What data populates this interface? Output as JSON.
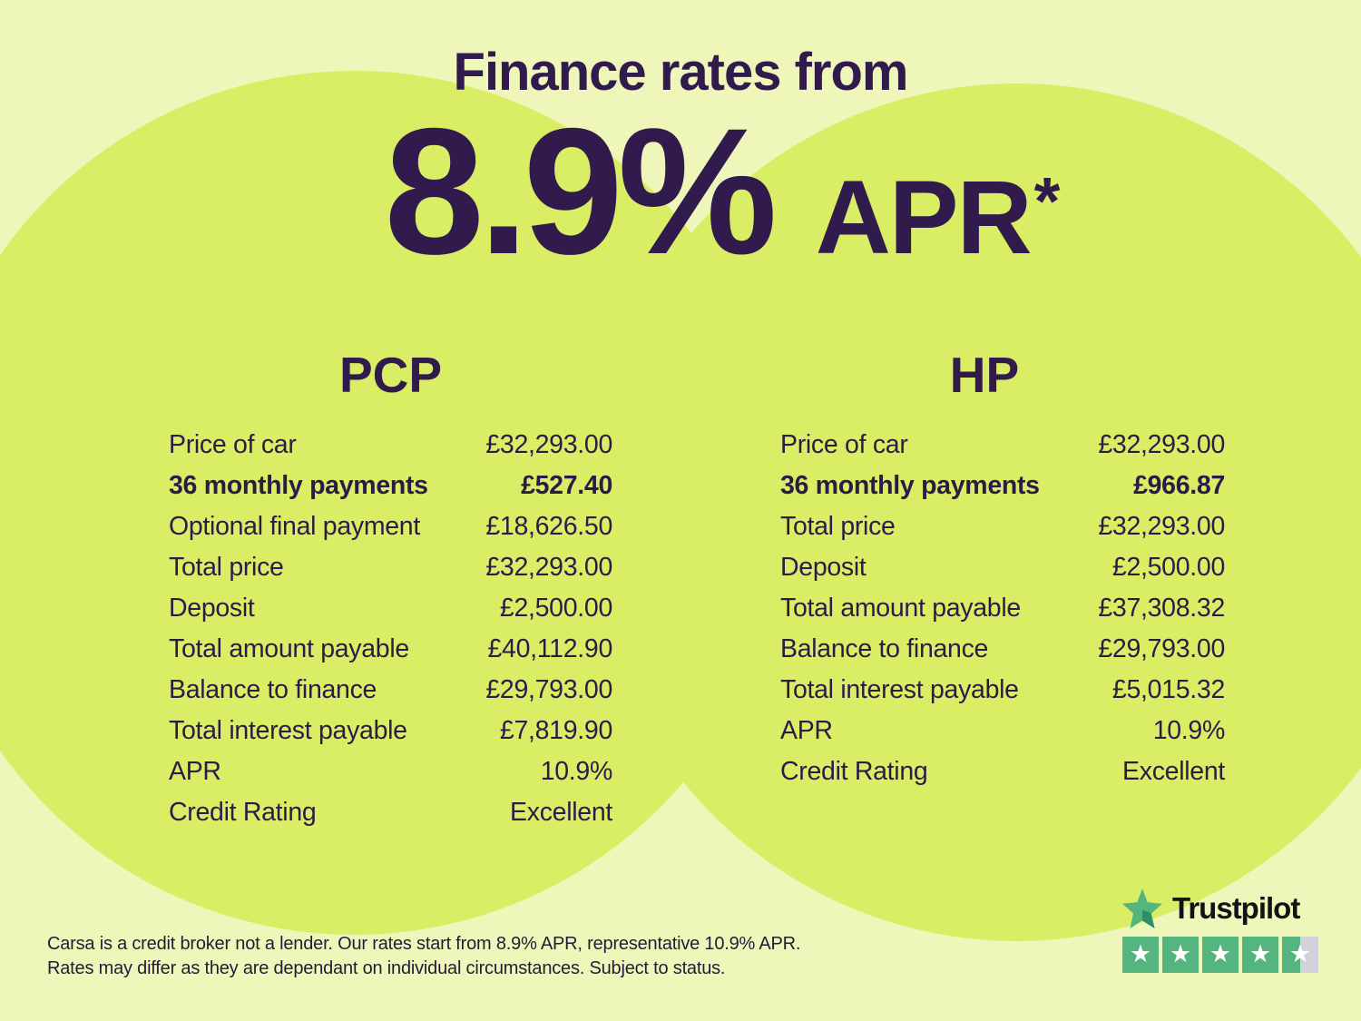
{
  "page": {
    "title": "Finance rates from"
  },
  "rate": {
    "value": "8.9%",
    "suffix": "APR",
    "footnote_marker": "*"
  },
  "tables": {
    "pcp": {
      "title": "PCP",
      "rows": [
        {
          "label": "Price of car",
          "value": "£32,293.00",
          "bold": false
        },
        {
          "label": "36 monthly payments",
          "value": "£527.40",
          "bold": true
        },
        {
          "label": "Optional final payment",
          "value": "£18,626.50",
          "bold": false
        },
        {
          "label": "Total price",
          "value": "£32,293.00",
          "bold": false
        },
        {
          "label": "Deposit",
          "value": "£2,500.00",
          "bold": false
        },
        {
          "label": "Total amount payable",
          "value": "£40,112.90",
          "bold": false
        },
        {
          "label": "Balance to finance",
          "value": "£29,793.00",
          "bold": false
        },
        {
          "label": "Total interest payable",
          "value": "£7,819.90",
          "bold": false
        },
        {
          "label": "APR",
          "value": "10.9%",
          "bold": false
        },
        {
          "label": "Credit Rating",
          "value": "Excellent",
          "bold": false
        }
      ]
    },
    "hp": {
      "title": "HP",
      "rows": [
        {
          "label": "Price of car",
          "value": "£32,293.00",
          "bold": false
        },
        {
          "label": "36 monthly payments",
          "value": "£966.87",
          "bold": true
        },
        {
          "label": "Total price",
          "value": "£32,293.00",
          "bold": false
        },
        {
          "label": "Deposit",
          "value": "£2,500.00",
          "bold": false
        },
        {
          "label": "Total amount payable",
          "value": "£37,308.32",
          "bold": false
        },
        {
          "label": "Balance to finance",
          "value": "£29,793.00",
          "bold": false
        },
        {
          "label": "Total interest payable",
          "value": "£5,015.32",
          "bold": false
        },
        {
          "label": "APR",
          "value": "10.9%",
          "bold": false
        },
        {
          "label": "Credit Rating",
          "value": "Excellent",
          "bold": false
        }
      ]
    }
  },
  "disclaimer": {
    "line1": "Carsa is a credit broker not a lender. Our rates start from 8.9% APR, representative 10.9% APR.",
    "line2": "Rates may differ as they are dependant on individual circumstances. Subject to status."
  },
  "trustpilot": {
    "brand": "Trustpilot",
    "rating": 4.5,
    "stars_total": 5
  },
  "colors": {
    "background": "#eef7b9",
    "circle": "#d9ee64",
    "heading": "#311b4d",
    "body_text": "#2d1b47",
    "trustpilot_green": "#55b57f",
    "trustpilot_dark_green": "#2e8f63",
    "star_box_gray": "#d2d2dc",
    "wordmark": "#131317"
  }
}
